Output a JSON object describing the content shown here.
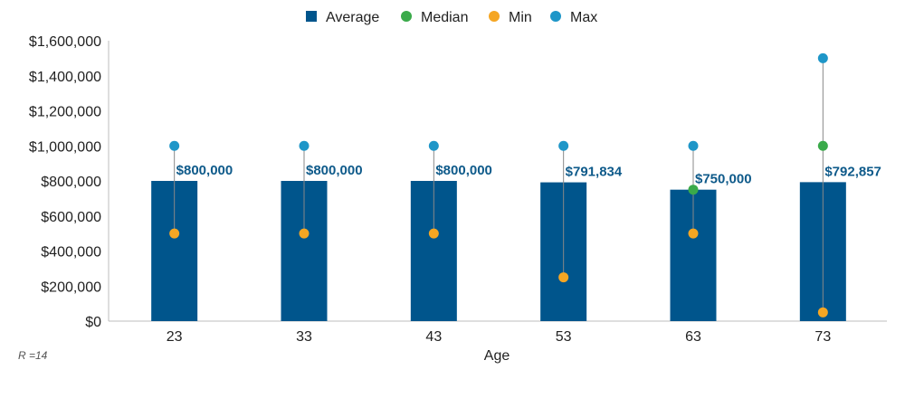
{
  "chart_data": {
    "type": "bar",
    "categories": [
      "23",
      "33",
      "43",
      "53",
      "63",
      "73"
    ],
    "series": [
      {
        "name": "Average",
        "kind": "bar",
        "values": [
          800000,
          800000,
          800000,
          791834,
          750000,
          792857
        ]
      },
      {
        "name": "Median",
        "kind": "marker",
        "values": [
          null,
          null,
          null,
          null,
          750000,
          1000000
        ]
      },
      {
        "name": "Min",
        "kind": "marker",
        "values": [
          500000,
          500000,
          500000,
          250000,
          500000,
          50000
        ]
      },
      {
        "name": "Max",
        "kind": "marker",
        "values": [
          1000000,
          1000000,
          1000000,
          1000000,
          1000000,
          1500000
        ]
      }
    ],
    "data_labels": [
      "$800,000",
      "$800,000",
      "$800,000",
      "$791,834",
      "$750,000",
      "$792,857"
    ],
    "yticks": [
      0,
      200000,
      400000,
      600000,
      800000,
      1000000,
      1200000,
      1400000,
      1600000
    ],
    "ytick_labels": [
      "$0",
      "$200,000",
      "$400,000",
      "$600,000",
      "$800,000",
      "$1,000,000",
      "$1,200,000",
      "$1,400,000",
      "$1,600,000"
    ],
    "ylim": [
      0,
      1600000
    ],
    "xlabel": "Age",
    "ylabel": "",
    "title": "",
    "legend_position": "top-center",
    "note": "R =14",
    "colors": {
      "Average": "#00558c",
      "Median": "#3aaa4a",
      "Min": "#f5a623",
      "Max": "#1e96c8",
      "range_line": "#888888",
      "label": "#0e5a8a"
    }
  }
}
